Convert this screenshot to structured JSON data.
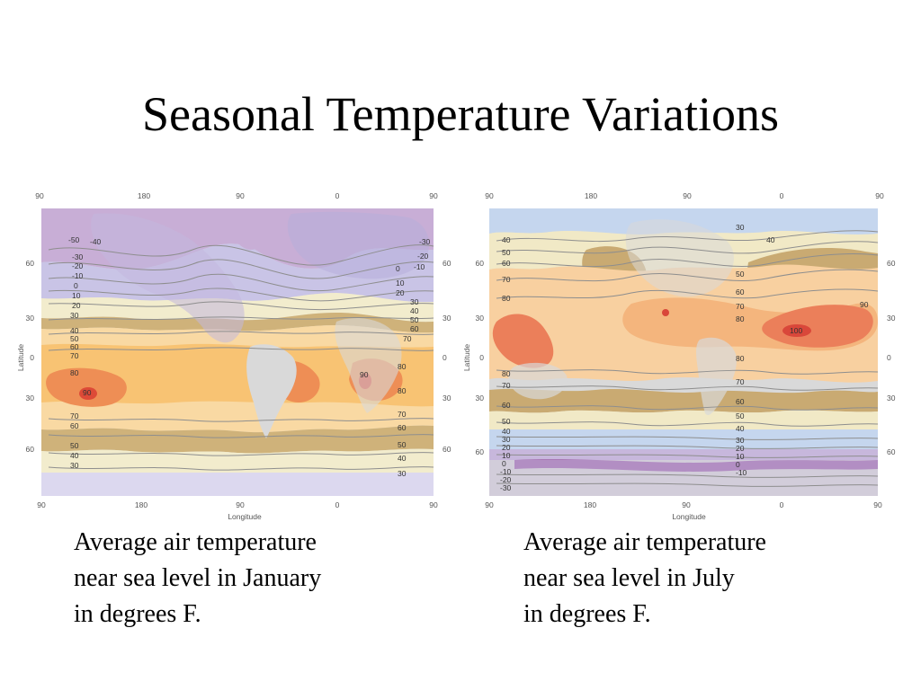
{
  "slide": {
    "title": "Seasonal Temperature Variations"
  },
  "maps": {
    "january": {
      "caption_lines": [
        "Average air temperature",
        "near sea level in January",
        "in degrees F."
      ],
      "top_ticks": [
        "90",
        "180",
        "90",
        "0",
        "90"
      ],
      "bottom_ticks": [
        "90",
        "180",
        "90",
        "0",
        "90"
      ],
      "left_ticks": [
        "60",
        "30",
        "0",
        "30",
        "60"
      ],
      "right_ticks": [
        "60",
        "30",
        "0",
        "30",
        "60"
      ],
      "x_axis_label": "Longitude",
      "y_axis_label": "Latitude",
      "isotherm_labels_left": [
        "-50",
        "-40",
        "-30",
        "-20",
        "-10",
        "0",
        "10",
        "20",
        "30",
        "40",
        "50",
        "60",
        "70",
        "80",
        "90",
        "70",
        "60",
        "50",
        "40",
        "30"
      ],
      "isotherm_labels_right": [
        "-30",
        "-20",
        "-10",
        "0",
        "10",
        "20",
        "30",
        "40",
        "50",
        "60",
        "70",
        "80",
        "80",
        "70",
        "60",
        "50",
        "40",
        "30"
      ],
      "hot_spot_labels": [
        "90",
        "90"
      ],
      "colors": {
        "very_cold": "#c8aed6",
        "cold": "#c9c4e6",
        "cool": "#dcd8ef",
        "mild": "#f2eccd",
        "band_tan": "#cfb27a",
        "warm": "#f9d9a3",
        "hot": "#f8c373",
        "very_hot": "#ee8e55",
        "hottest": "#dd4a37",
        "land": "#d9d9d9"
      }
    },
    "july": {
      "caption_lines": [
        "Average air temperature",
        "near sea level in July",
        "in degrees F."
      ],
      "top_ticks": [
        "90",
        "180",
        "90",
        "0",
        "90"
      ],
      "bottom_ticks": [
        "90",
        "180",
        "90",
        "0",
        "90"
      ],
      "left_ticks": [
        "60",
        "30",
        "0",
        "30",
        "60"
      ],
      "right_ticks": [
        "60",
        "30",
        "0",
        "30",
        "60"
      ],
      "x_axis_label": "Longitude",
      "y_axis_label": "Latitude",
      "isotherm_labels_left": [
        "40",
        "50",
        "60",
        "70",
        "80",
        "80",
        "70",
        "60",
        "50",
        "40",
        "30",
        "20",
        "10",
        "0",
        "-10",
        "-20",
        "-30"
      ],
      "isotherm_labels_right": [
        "30",
        "40",
        "50",
        "60",
        "70",
        "80",
        "90",
        "80",
        "70",
        "60",
        "50",
        "40",
        "30",
        "20",
        "10",
        "0",
        "-10"
      ],
      "hot_spot_labels": [
        "100"
      ],
      "colors": {
        "cold": "#c5d6ee",
        "mild": "#f1e9c6",
        "band_tan": "#c9aa72",
        "warm": "#f8d0a0",
        "hot": "#f4b57d",
        "very_hot": "#eb7f5a",
        "hottest": "#d9473a",
        "cool_purple": "#c7b7dc",
        "dark_purple": "#a878b6",
        "land": "#d9d9d9"
      }
    }
  }
}
